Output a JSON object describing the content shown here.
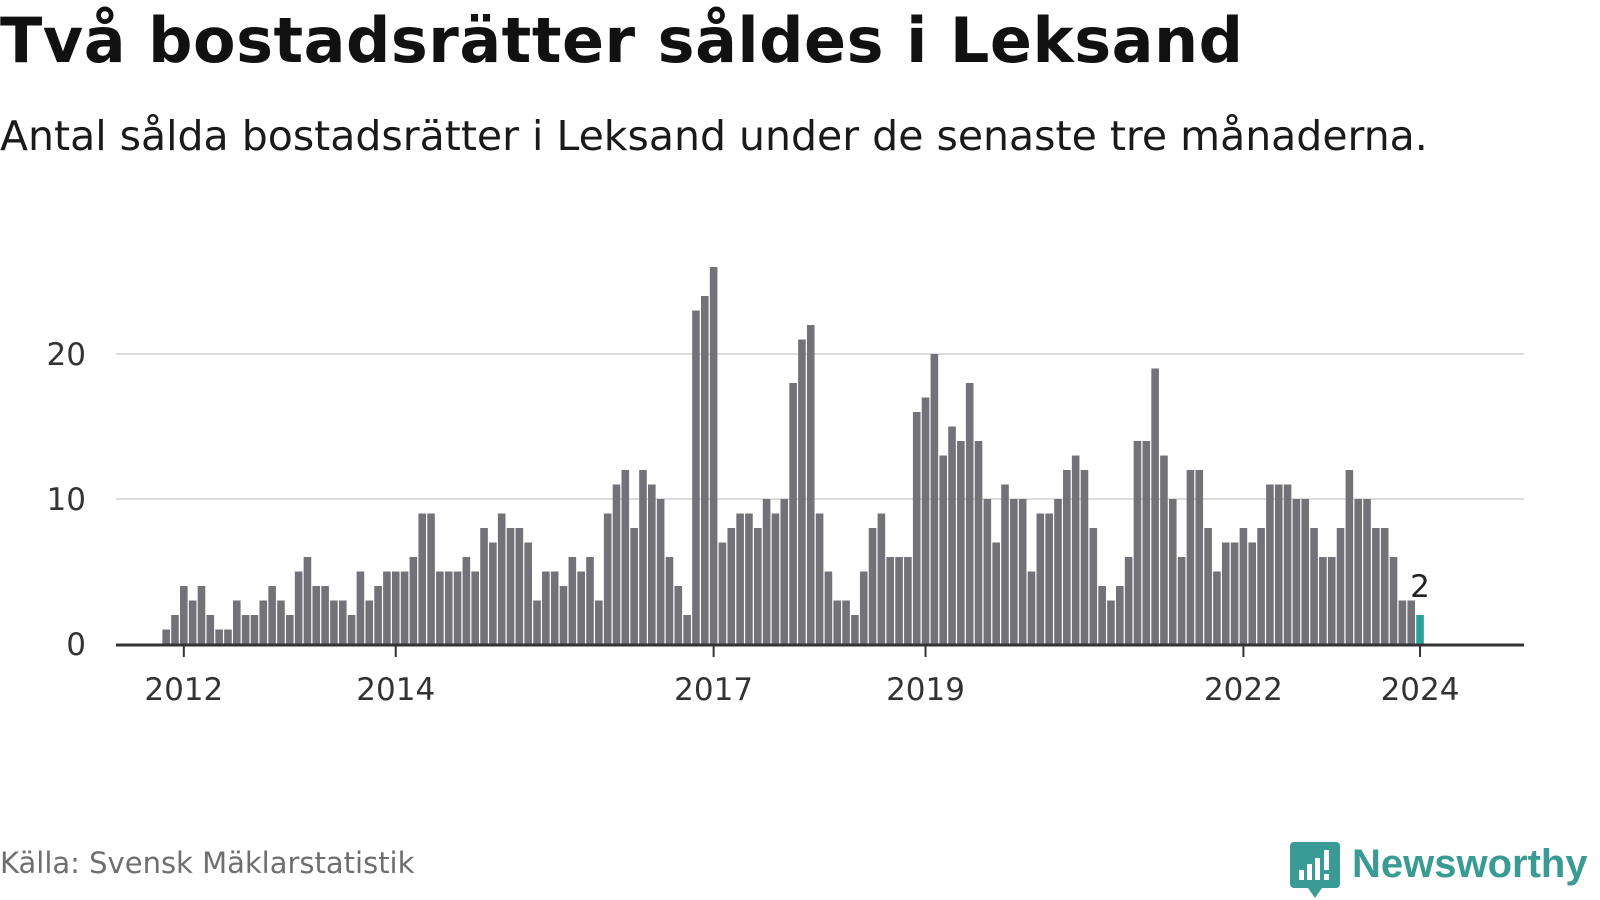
{
  "title": "Två bostadsrätter såldes i Leksand",
  "subtitle": "Antal sålda bostadsrätter i Leksand under de senaste tre månaderna.",
  "source": "Källa: Svensk Mäklarstatistik",
  "brand": "Newsworthy",
  "colors": {
    "bar": "#737278",
    "highlight": "#2aa198",
    "grid": "#dddddd",
    "axis": "#333333",
    "brand": "#3a9b95"
  },
  "chart_data": {
    "type": "bar",
    "start": "2012-01",
    "values": [
      0,
      0,
      1,
      2,
      4,
      3,
      4,
      2,
      1,
      1,
      3,
      2,
      2,
      3,
      4,
      3,
      2,
      5,
      6,
      4,
      4,
      3,
      3,
      2,
      5,
      3,
      4,
      5,
      5,
      5,
      6,
      9,
      9,
      5,
      5,
      5,
      6,
      5,
      8,
      7,
      9,
      8,
      8,
      7,
      3,
      5,
      5,
      4,
      6,
      5,
      6,
      3,
      9,
      11,
      12,
      8,
      12,
      11,
      10,
      6,
      4,
      2,
      23,
      24,
      26,
      7,
      8,
      9,
      9,
      8,
      10,
      9,
      10,
      18,
      21,
      22,
      9,
      5,
      3,
      3,
      2,
      5,
      8,
      9,
      6,
      6,
      6,
      16,
      17,
      20,
      13,
      15,
      14,
      18,
      14,
      10,
      7,
      11,
      10,
      10,
      5,
      9,
      9,
      10,
      12,
      13,
      12,
      8,
      4,
      3,
      4,
      6,
      14,
      14,
      19,
      13,
      10,
      6,
      12,
      12,
      8,
      5,
      7,
      7,
      8,
      7,
      8,
      11,
      11,
      11,
      10,
      10,
      8,
      6,
      6,
      8,
      12,
      10,
      10,
      8,
      8,
      6,
      3,
      3,
      2
    ],
    "highlight_index": 144,
    "highlight_label": "2",
    "yticks": [
      0,
      10,
      20
    ],
    "ylim": [
      0,
      26
    ],
    "xticks": [
      {
        "label": "2012",
        "index": 4
      },
      {
        "label": "2014",
        "index": 28
      },
      {
        "label": "2017",
        "index": 64
      },
      {
        "label": "2019",
        "index": 88
      },
      {
        "label": "2022",
        "index": 124
      },
      {
        "label": "2024",
        "index": 144
      }
    ],
    "xlabel": "",
    "ylabel": ""
  }
}
